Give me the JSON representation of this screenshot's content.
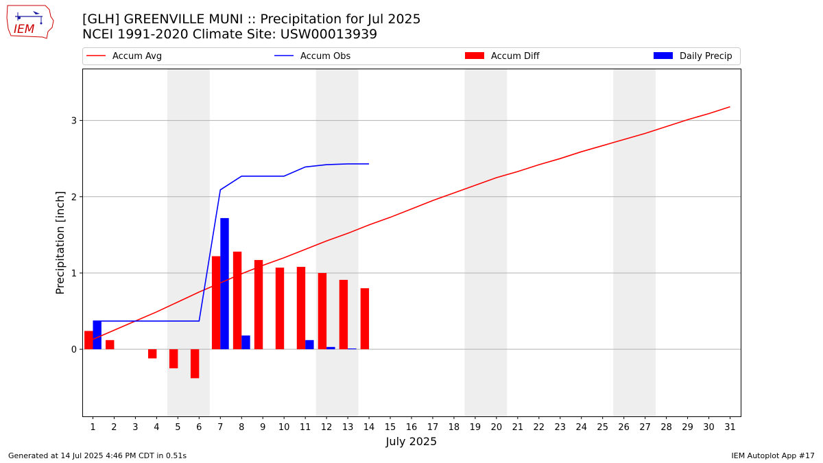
{
  "header": {
    "title_line1": "[GLH] GREENVILLE MUNI :: Precipitation for Jul 2025",
    "title_line2": "NCEI 1991-2020 Climate Site: USW00013939",
    "logo_text": "IEM"
  },
  "footer": {
    "generated": "Generated at 14 Jul 2025 4:46 PM CDT in 0.51s",
    "app": "IEM Autoplot App #17"
  },
  "chart_data": {
    "type": "bar",
    "xlabel": "July 2025",
    "ylabel": "Precipitation [inch]",
    "xlim": [
      0.5,
      31.5
    ],
    "ylim": [
      -0.88,
      3.68
    ],
    "yticks": [
      0,
      1,
      2,
      3
    ],
    "xticks": [
      1,
      2,
      3,
      4,
      5,
      6,
      7,
      8,
      9,
      10,
      11,
      12,
      13,
      14,
      15,
      16,
      17,
      18,
      19,
      20,
      21,
      22,
      23,
      24,
      25,
      26,
      27,
      28,
      29,
      30,
      31
    ],
    "grid": "horizontal",
    "legend_placement": "top",
    "weekend_shading": [
      [
        4.5,
        6.5
      ],
      [
        11.5,
        13.5
      ],
      [
        18.5,
        20.5
      ],
      [
        25.5,
        27.5
      ]
    ],
    "colors": {
      "avg": "#ff0000",
      "obs": "#0000ff",
      "diff": "#ff0000",
      "daily": "#0000ff",
      "shade": "#eeeeee",
      "grid": "#b0b0b0"
    },
    "series": [
      {
        "name": "Accum Avg",
        "type": "line",
        "x": [
          1,
          2,
          3,
          4,
          5,
          6,
          7,
          8,
          9,
          10,
          11,
          12,
          13,
          14,
          15,
          16,
          17,
          18,
          19,
          20,
          21,
          22,
          23,
          24,
          25,
          26,
          27,
          28,
          29,
          30,
          31
        ],
        "values": [
          0.13,
          0.25,
          0.37,
          0.49,
          0.62,
          0.75,
          0.87,
          0.99,
          1.1,
          1.2,
          1.31,
          1.42,
          1.52,
          1.63,
          1.73,
          1.84,
          1.95,
          2.05,
          2.15,
          2.25,
          2.33,
          2.42,
          2.5,
          2.59,
          2.67,
          2.75,
          2.83,
          2.92,
          3.01,
          3.09,
          3.18
        ]
      },
      {
        "name": "Accum Obs",
        "type": "line",
        "x": [
          1,
          2,
          3,
          4,
          5,
          6,
          7,
          8,
          9,
          10,
          11,
          12,
          13,
          14
        ],
        "values": [
          0.37,
          0.37,
          0.37,
          0.37,
          0.37,
          0.37,
          2.09,
          2.27,
          2.27,
          2.27,
          2.39,
          2.42,
          2.43,
          2.43
        ]
      },
      {
        "name": "Accum Diff",
        "type": "bar",
        "x": [
          1,
          2,
          3,
          4,
          5,
          6,
          7,
          8,
          9,
          10,
          11,
          12,
          13,
          14
        ],
        "values": [
          0.24,
          0.12,
          0.0,
          -0.12,
          -0.25,
          -0.38,
          1.22,
          1.28,
          1.17,
          1.07,
          1.08,
          1.0,
          0.91,
          0.8
        ]
      },
      {
        "name": "Daily Precip",
        "type": "bar",
        "x": [
          1,
          2,
          3,
          4,
          5,
          6,
          7,
          8,
          9,
          10,
          11,
          12,
          13,
          14
        ],
        "values": [
          0.37,
          0,
          0,
          0,
          0,
          0,
          1.72,
          0.18,
          0,
          0,
          0.12,
          0.03,
          0.01,
          0
        ]
      }
    ]
  }
}
